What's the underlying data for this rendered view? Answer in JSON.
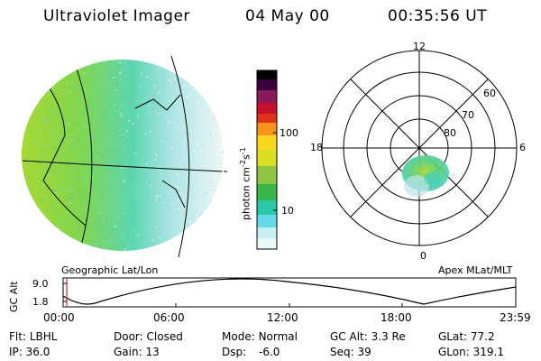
{
  "header": {
    "instrument": "Ultraviolet Imager",
    "date": "04 May 00",
    "time": "00:35:56 UT"
  },
  "colorbar": {
    "label_main": "photon cm",
    "label_sup1": "-2",
    "label_mid": "s",
    "label_sup2": "-1",
    "ticks": [
      "100",
      "10"
    ]
  },
  "geo_panel": {
    "caption": "Geographic Lat/Lon"
  },
  "polar_panel": {
    "caption": "Apex MLat/MLT",
    "mlt_labels": [
      "12",
      "18",
      "6",
      "0"
    ],
    "lat_labels": [
      "60",
      "70",
      "80"
    ]
  },
  "altitude_plot": {
    "ylabel": "GC Alt",
    "yticks": [
      "9.0",
      "1.8"
    ],
    "xticks": [
      "00:00",
      "06:00",
      "12:00",
      "18:00",
      "23:59"
    ]
  },
  "status": {
    "flt_label": "Flt:",
    "flt_value": "LBHL",
    "ip_label": "IP:",
    "ip_value": "36.0",
    "door_label": "Door:",
    "door_value": "Closed",
    "gain_label": "Gain:",
    "gain_value": "13",
    "mode_label": "Mode:",
    "mode_value": "Normal",
    "dsp_label": "Dsp:",
    "dsp_value": "-6.0",
    "gcalt_label": "GC Alt:",
    "gcalt_value": "3.3 Re",
    "seq_label": "Seq:",
    "seq_value": "39",
    "glat_label": "GLat:",
    "glat_value": "77.2",
    "glon_label": "GLon:",
    "glon_value": "319.1"
  },
  "colors": {
    "background": "#ffffff",
    "foreground": "#000000",
    "time_marker": "#c00000"
  }
}
